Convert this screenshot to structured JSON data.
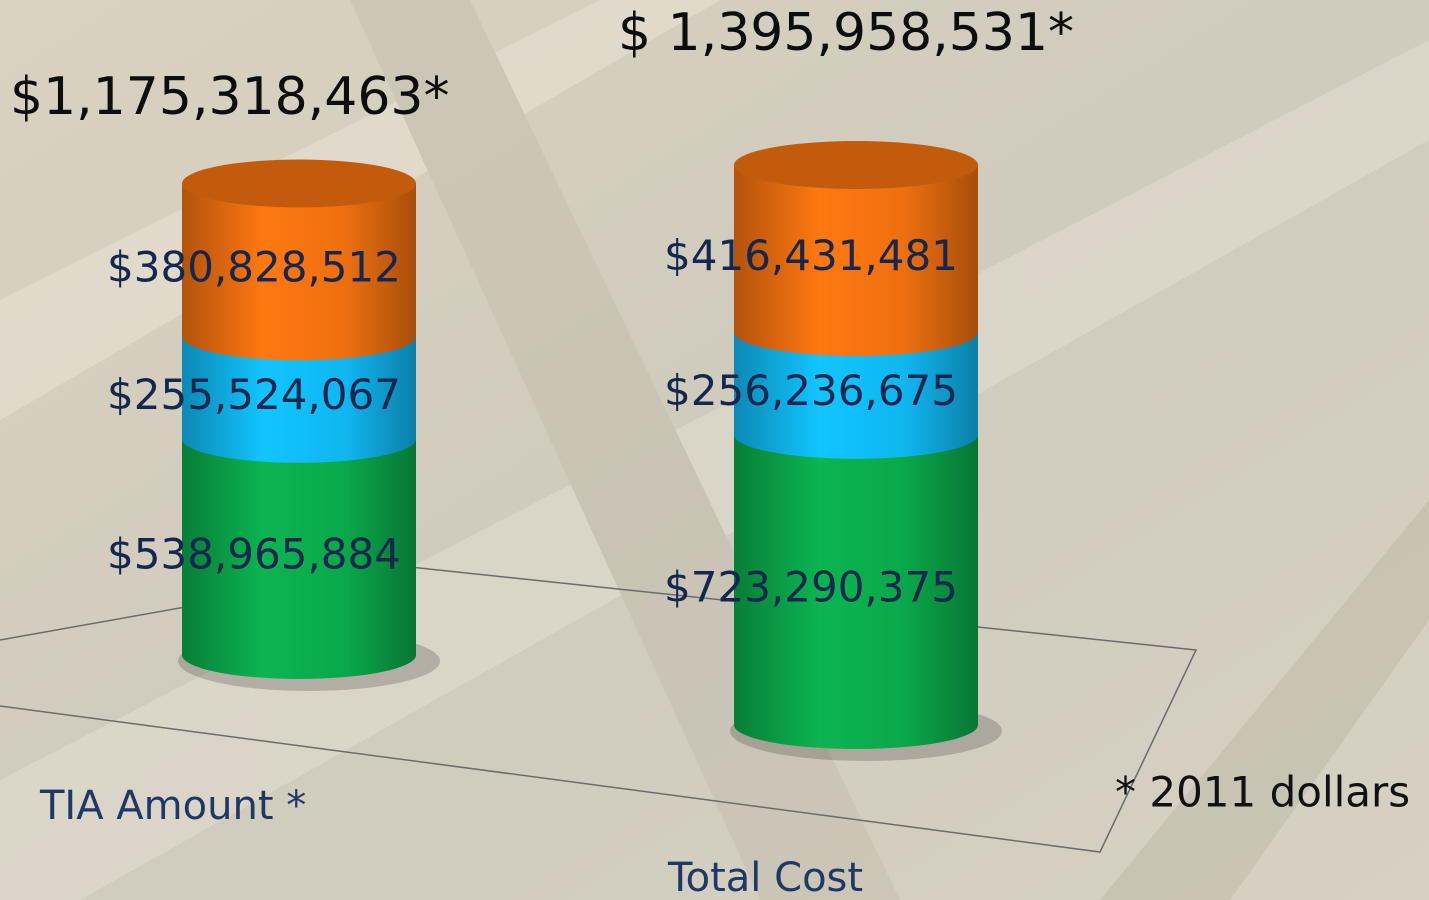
{
  "chart_data": {
    "type": "cylinder-stacked",
    "categories": [
      "TIA Amount *",
      "Total Cost"
    ],
    "series": [
      {
        "color": "#0aa84a",
        "values": [
          538965884,
          723290375
        ],
        "value_labels": [
          "$538,965,884",
          "$723,290,375"
        ]
      },
      {
        "color": "#10b6f0",
        "values": [
          255524067,
          256236675
        ],
        "value_labels": [
          "$255,524,067",
          "$256,236,675"
        ]
      },
      {
        "color": "#ee6f10",
        "values": [
          380828512,
          416431481
        ],
        "value_labels": [
          "$380,828,512",
          "$416,431,481"
        ]
      }
    ],
    "totals": {
      "values": [
        1175318463,
        1395958531
      ],
      "value_labels": [
        "$1,175,318,463*",
        "$ 1,395,958,531*"
      ]
    },
    "footnote": "* 2011 dollars"
  }
}
